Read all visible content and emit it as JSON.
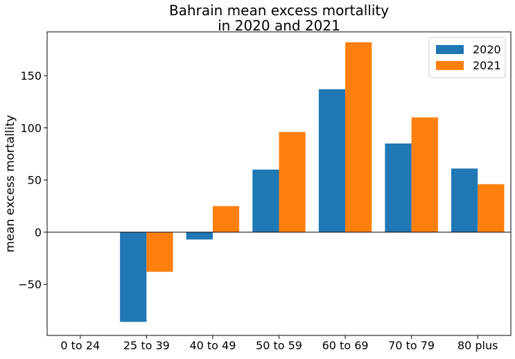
{
  "chart_data": {
    "type": "bar",
    "title": "Bahrain mean excess mortallity\nin 2020 and 2021",
    "xlabel": "",
    "ylabel": "mean excess mortallity",
    "categories": [
      "0 to 24",
      "25 to 39",
      "40 to 49",
      "50 to 59",
      "60 to 69",
      "70 to 79",
      "80 plus"
    ],
    "series": [
      {
        "name": "2020",
        "color": "#1f77b4",
        "values": [
          0,
          -86,
          -7,
          60,
          137,
          85,
          61
        ]
      },
      {
        "name": "2021",
        "color": "#ff7f0e",
        "values": [
          0,
          -38,
          25,
          96,
          182,
          110,
          46
        ]
      }
    ],
    "ylim": [
      -99,
      192
    ],
    "yticks": [
      -50,
      0,
      50,
      100,
      150
    ],
    "grid": false,
    "legend": "top-right",
    "zero_line": true
  }
}
